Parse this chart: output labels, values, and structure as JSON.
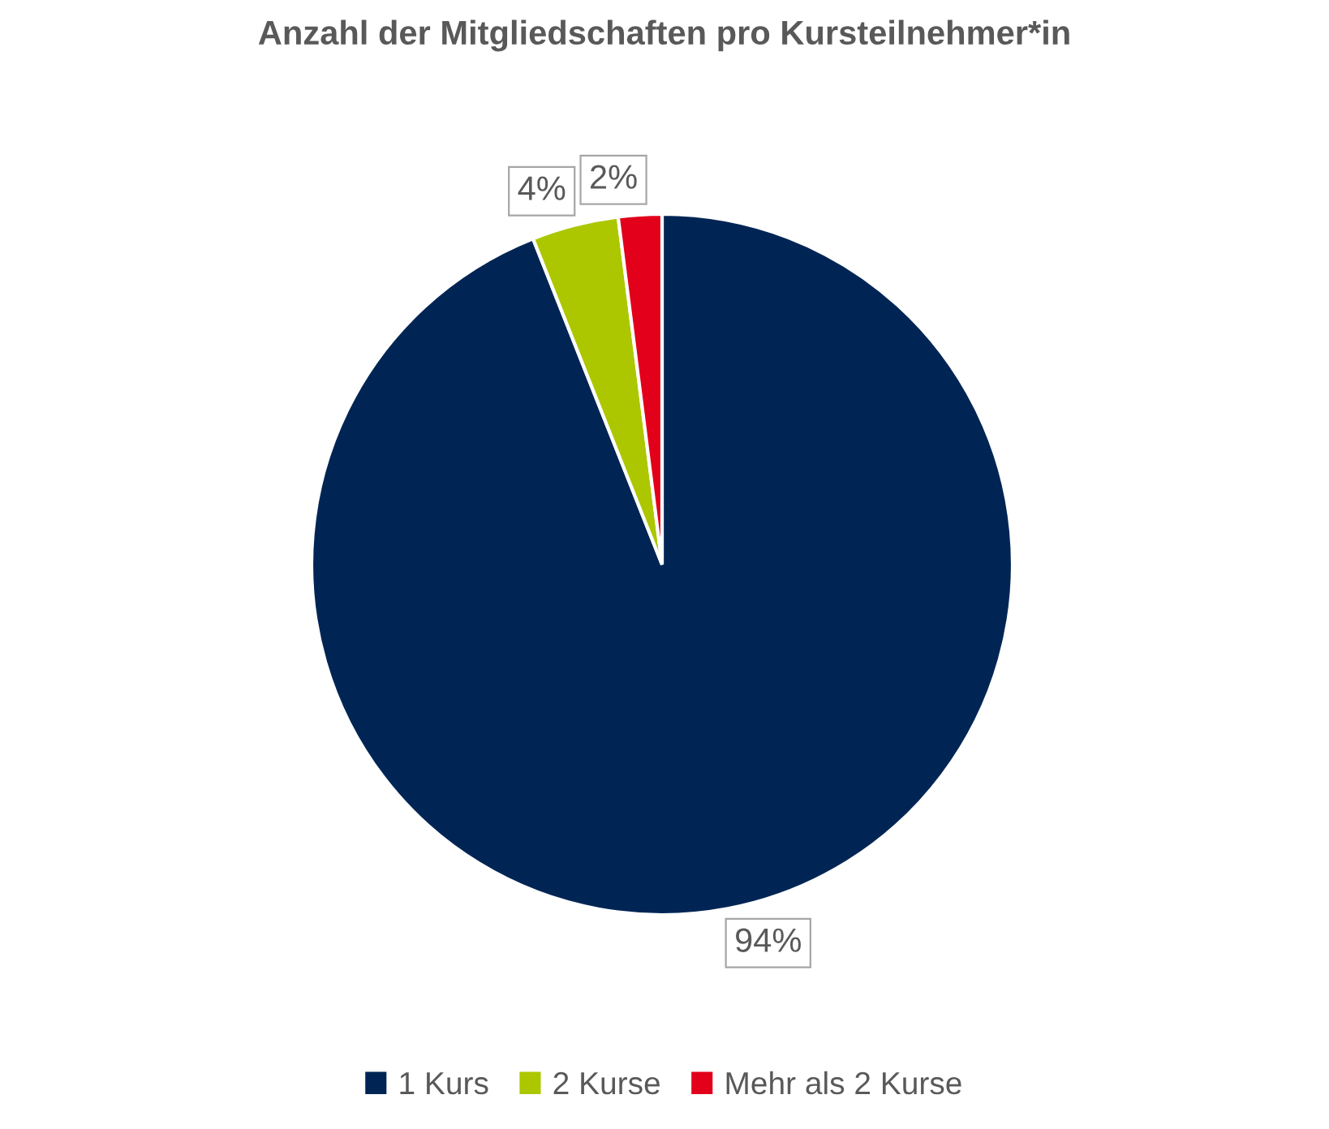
{
  "chart_data": {
    "type": "pie",
    "title": "Anzahl der Mitgliedschaften pro Kursteilnehmer*in",
    "categories": [
      "1 Kurs",
      "2 Kurse",
      "Mehr als 2 Kurse"
    ],
    "values": [
      94,
      4,
      2
    ],
    "colors": [
      "#002554",
      "#acc700",
      "#e2001a"
    ],
    "value_labels": [
      "94%",
      "4%",
      "2%"
    ],
    "legend": "bottom"
  }
}
